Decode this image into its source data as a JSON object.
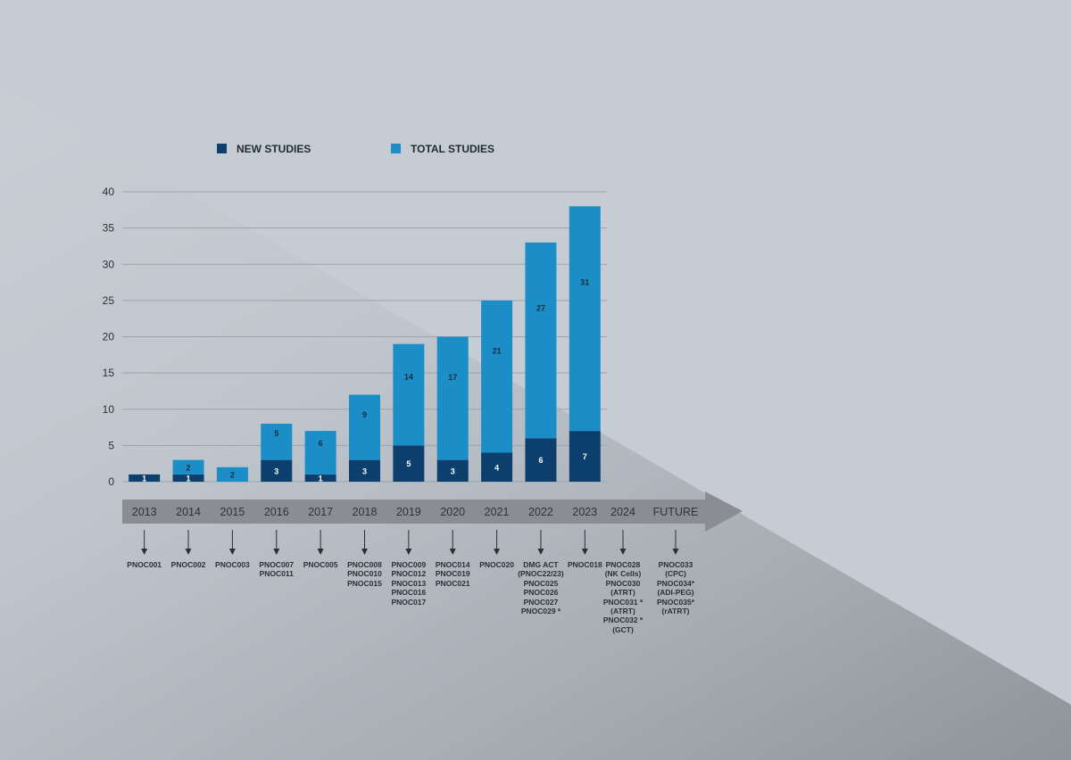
{
  "colors": {
    "new": "#0d3f6e",
    "total": "#1b8ec7",
    "grid": "#9aa3ad",
    "axis_text": "#2b2f33",
    "arrow": "#8a8d91",
    "year_text": "#2f3338"
  },
  "legend": [
    {
      "label": "NEW STUDIES",
      "color": "#0d3f6e"
    },
    {
      "label": "TOTAL STUDIES",
      "color": "#1b8ec7"
    }
  ],
  "chart_data": {
    "type": "bar",
    "stacked": true,
    "categories": [
      "2013",
      "2014",
      "2015",
      "2016",
      "2017",
      "2018",
      "2019",
      "2020",
      "2021",
      "2022",
      "2023"
    ],
    "series": [
      {
        "name": "NEW STUDIES",
        "values": [
          1,
          1,
          0,
          3,
          1,
          3,
          5,
          3,
          4,
          6,
          7
        ]
      },
      {
        "name": "TOTAL STUDIES",
        "values": [
          0,
          2,
          2,
          5,
          6,
          9,
          14,
          17,
          21,
          27,
          31
        ]
      }
    ],
    "ylim": [
      0,
      40
    ],
    "yticks": [
      0,
      5,
      10,
      15,
      20,
      25,
      30,
      35,
      40
    ],
    "grid": true,
    "legend_position": "top"
  },
  "timeline": {
    "labels": [
      "2013",
      "2014",
      "2015",
      "2016",
      "2017",
      "2018",
      "2019",
      "2020",
      "2021",
      "2022",
      "2023",
      "2024",
      "FUTURE"
    ]
  },
  "studies": [
    [
      "PNOC001"
    ],
    [
      "PNOC002"
    ],
    [
      "PNOC003"
    ],
    [
      "PNOC007",
      "PNOC011"
    ],
    [
      "PNOC005"
    ],
    [
      "PNOC008",
      "PNOC010",
      "PNOC015"
    ],
    [
      "PNOC009",
      "PNOC012",
      "PNOC013",
      "PNOC016",
      "PNOC017"
    ],
    [
      "PNOC014",
      "PNOC019",
      "PNOC021"
    ],
    [
      "PNOC020"
    ],
    [
      "DMG ACT",
      "(PNOC22/23)",
      "PNOC025",
      "PNOC026",
      "PNOC027",
      "PNOC029 ª"
    ],
    [
      "PNOC018"
    ],
    [
      "PNOC028",
      "(NK Cells)",
      "PNOC030",
      "(ATRT)",
      "PNOC031 ª",
      "(ATRT)",
      "PNOC032 ª",
      "(GCT)"
    ],
    [
      "PNOC033",
      "(CPC)",
      "PNOC034*",
      "(ADI-PEG)",
      "PNOC035*",
      "(rATRT)"
    ]
  ]
}
